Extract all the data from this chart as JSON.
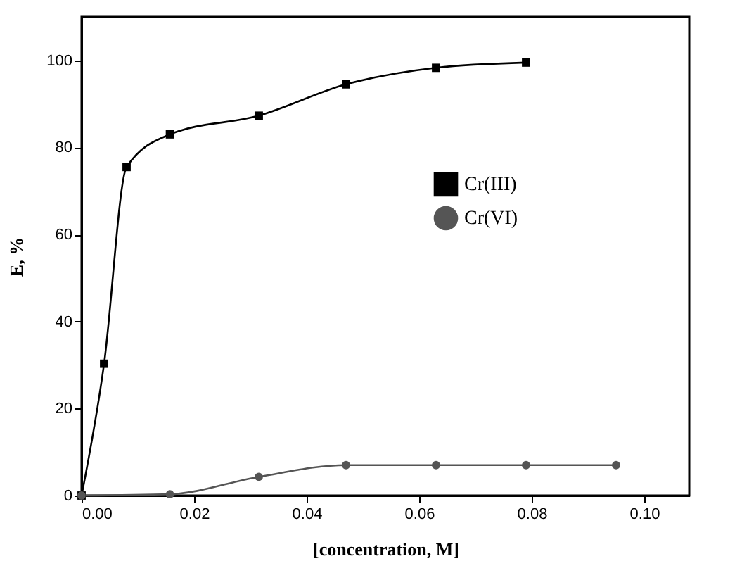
{
  "chart_data": {
    "type": "line",
    "xlabel": "[concentration, M]",
    "ylabel": "E, %",
    "xlim": [
      0,
      0.108
    ],
    "xticks": [
      {
        "value": 0,
        "label": "0.00"
      },
      {
        "value": 0.02,
        "label": "0.02"
      },
      {
        "value": 0.04,
        "label": "0.04"
      },
      {
        "value": 0.06,
        "label": "0.06"
      },
      {
        "value": 0.08,
        "label": "0.08"
      },
      {
        "value": 0.1,
        "label": "0.10"
      }
    ],
    "ylim": [
      0,
      110
    ],
    "yticks": [
      0,
      20,
      40,
      60,
      80,
      100
    ],
    "grid": false,
    "legend": "right",
    "series": [
      {
        "name": "Cr(III)",
        "color": "#000000",
        "marker": "square",
        "x": [
          0,
          0.004,
          0.008,
          0.0157,
          0.0315,
          0.047,
          0.063,
          0.079
        ],
        "values": [
          0,
          30.3,
          75.5,
          83,
          87.3,
          94.5,
          98.3,
          99.5
        ]
      },
      {
        "name": "Cr(VI)",
        "color": "#555555",
        "marker": "circle",
        "x": [
          0,
          0.0157,
          0.0315,
          0.047,
          0.063,
          0.079,
          0.095
        ],
        "values": [
          0,
          0.3,
          4.3,
          7,
          7,
          7,
          7
        ]
      }
    ]
  }
}
